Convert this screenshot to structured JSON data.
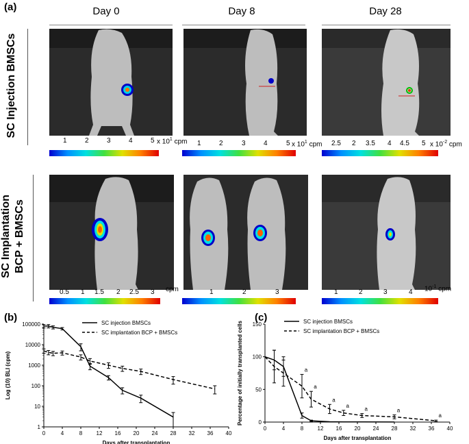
{
  "figure": {
    "panel_a_label": "(a)",
    "panel_b_label": "(b)",
    "panel_c_label": "(c)",
    "days": [
      "Day 0",
      "Day 8",
      "Day 28"
    ],
    "row_labels": [
      "SC Injection BMSCs",
      "SC Implantation\nBCP + BMSCs"
    ],
    "row1_line1": "SC Injection BMSCs",
    "row2_line1": "SC Implantation",
    "row2_line2": "BCP + BMSCs",
    "colorbars": [
      {
        "ticks": [
          "1",
          "2",
          "3",
          "4",
          "5"
        ],
        "unit_prefix": "x 10",
        "unit_exp": "1",
        "unit_suffix": " cpm"
      },
      {
        "ticks": [
          "1",
          "2",
          "3",
          "4",
          "5"
        ],
        "unit_prefix": "x 10",
        "unit_exp": "1",
        "unit_suffix": " cpm"
      },
      {
        "ticks": [
          "2.5",
          "2",
          "3.5",
          "4",
          "4.5",
          "5"
        ],
        "unit_prefix": "x 10",
        "unit_exp": "-2",
        "unit_suffix": " cpm"
      },
      {
        "ticks": [
          "0.5",
          "1",
          "1.5",
          "2",
          "2.5",
          "3"
        ],
        "unit_prefix": "",
        "unit_exp": "",
        "unit_suffix": "cpm"
      },
      {
        "ticks": [
          "1",
          "2",
          "3"
        ],
        "unit_prefix": "",
        "unit_exp": "",
        "unit_suffix": ""
      },
      {
        "ticks": [
          "1",
          "2",
          "3",
          "4"
        ],
        "unit_prefix": "10",
        "unit_exp": "-1",
        "unit_suffix": " cpm"
      }
    ]
  },
  "chart_data": [
    {
      "type": "line",
      "panel": "(b)",
      "ylabel": "Log (10) BLI (cpm)",
      "xlabel": "Days after transplantation",
      "yscale": "log",
      "ylim": [
        1,
        100000
      ],
      "xlim": [
        0,
        40
      ],
      "xticks": [
        0,
        4,
        8,
        12,
        16,
        20,
        24,
        28,
        32,
        36,
        40
      ],
      "yticks": [
        1,
        10,
        100,
        1000,
        10000,
        100000
      ],
      "ytick_labels": [
        "1",
        "10",
        "100",
        "1000",
        "10000",
        "100000"
      ],
      "legend_position": "top-right",
      "series": [
        {
          "name": "SC injection BMSCs",
          "style": "solid",
          "x": [
            0,
            1,
            2,
            4,
            8,
            10,
            14,
            17,
            21,
            28
          ],
          "y": [
            80000,
            80000,
            70000,
            60000,
            8000,
            900,
            250,
            60,
            25,
            3
          ],
          "err": [
            15000,
            15000,
            12000,
            8000,
            3000,
            300,
            60,
            20,
            10,
            2
          ]
        },
        {
          "name": "SC implantation BCP + BMSCs",
          "style": "dashed",
          "x": [
            0,
            1,
            2,
            4,
            8,
            10,
            14,
            17,
            21,
            28,
            37
          ],
          "y": [
            5000,
            4200,
            3800,
            4000,
            2500,
            1600,
            1000,
            700,
            500,
            200,
            70
          ],
          "err": [
            1200,
            1000,
            900,
            900,
            700,
            500,
            300,
            200,
            150,
            80,
            30
          ]
        }
      ]
    },
    {
      "type": "line",
      "panel": "(c)",
      "ylabel": "Percentage of initially transplanted cells",
      "xlabel": "Days after transplantation",
      "ylim": [
        0,
        150
      ],
      "xlim": [
        0,
        40
      ],
      "xticks": [
        0,
        4,
        8,
        12,
        16,
        20,
        24,
        28,
        32,
        36,
        40
      ],
      "yticks": [
        0,
        50,
        100,
        150
      ],
      "legend_position": "top-right",
      "annotation": "a",
      "annotated_x": [
        8,
        10,
        14,
        17,
        21,
        28,
        37
      ],
      "series": [
        {
          "name": "SC injection BMSCs",
          "style": "solid",
          "x": [
            0,
            2,
            4,
            8,
            10,
            14,
            17,
            21,
            28
          ],
          "y": [
            100,
            95,
            85,
            10,
            2,
            0.5,
            0.3,
            0.2,
            0.1
          ],
          "err": [
            0,
            15,
            15,
            4,
            1,
            0,
            0,
            0,
            0
          ]
        },
        {
          "name": "SC implantation BCP + BMSCs",
          "style": "dashed",
          "x": [
            0,
            2,
            4,
            8,
            10,
            14,
            17,
            21,
            28,
            37
          ],
          "y": [
            100,
            85,
            75,
            55,
            35,
            20,
            14,
            10,
            8,
            2
          ],
          "err": [
            0,
            25,
            20,
            18,
            12,
            7,
            4,
            3,
            3,
            1
          ]
        }
      ]
    }
  ]
}
